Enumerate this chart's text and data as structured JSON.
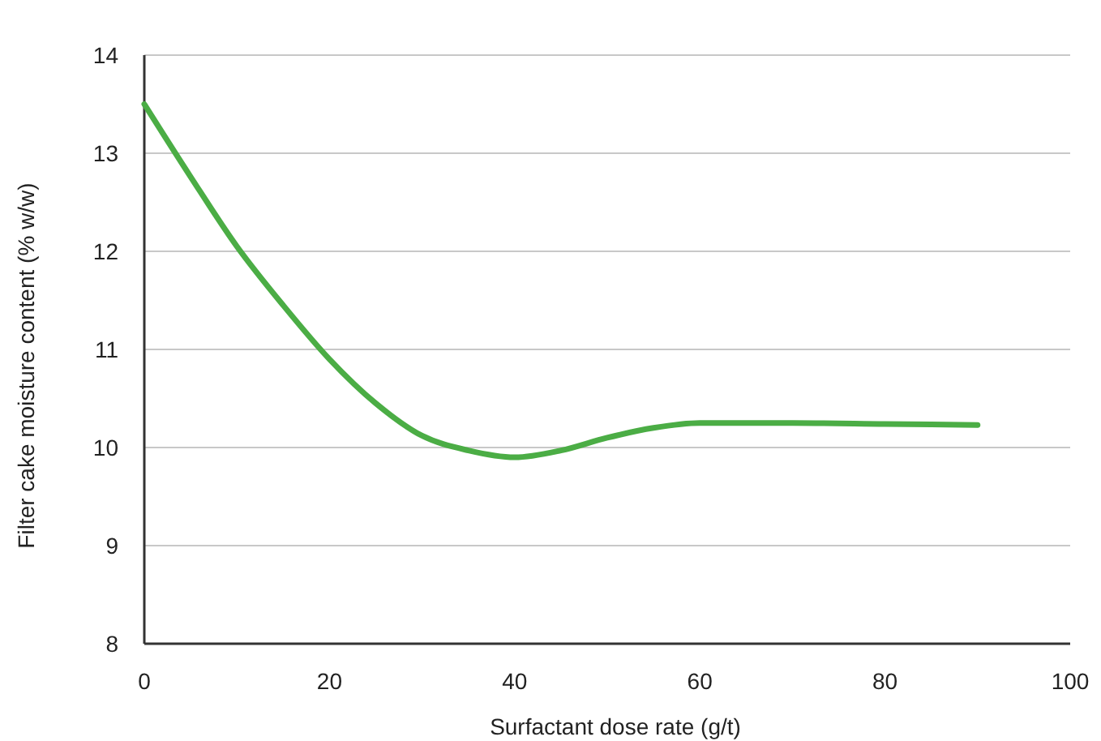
{
  "chart_data": {
    "type": "line",
    "xlabel": "Surfactant dose rate (g/t)",
    "ylabel": "Filter cake moisture content (% w/w)",
    "x": [
      0,
      5,
      10,
      15,
      20,
      25,
      30,
      35,
      40,
      45,
      50,
      55,
      60,
      70,
      80,
      90
    ],
    "series": [
      {
        "color": "#4bad45",
        "values": [
          13.5,
          12.76,
          12.05,
          11.45,
          10.9,
          10.45,
          10.12,
          9.97,
          9.9,
          9.97,
          10.1,
          10.2,
          10.25,
          10.25,
          10.24,
          10.23
        ]
      }
    ],
    "xlim": [
      0,
      100
    ],
    "xticks": [
      0,
      20,
      40,
      60,
      80,
      100
    ],
    "ylim": [
      8,
      14
    ],
    "yticks": [
      8,
      9,
      10,
      11,
      12,
      13,
      14
    ],
    "grid": "y",
    "marker": "none",
    "line_style": "solid"
  }
}
